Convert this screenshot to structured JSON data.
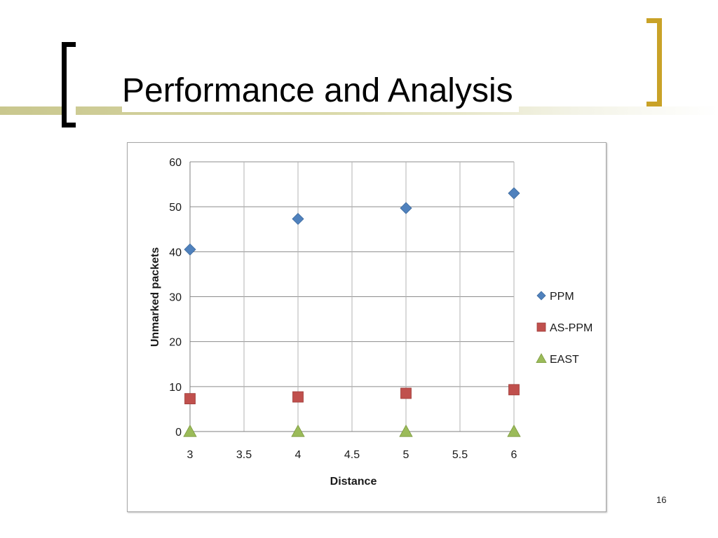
{
  "slide": {
    "title": "Performance and Analysis",
    "page_number": "16"
  },
  "chart_data": {
    "type": "scatter",
    "title": "",
    "xlabel": "Distance",
    "ylabel": "Unmarked packets",
    "xlim": [
      3,
      6
    ],
    "ylim": [
      0,
      60
    ],
    "x_ticks": [
      "3",
      "3.5",
      "4",
      "4.5",
      "5",
      "5.5",
      "6"
    ],
    "y_ticks": [
      "0",
      "10",
      "20",
      "30",
      "40",
      "50",
      "60"
    ],
    "grid": true,
    "legend_position": "right",
    "series": [
      {
        "name": "PPM",
        "marker": "diamond",
        "color": "#4f81bd",
        "x": [
          3,
          4,
          5,
          6
        ],
        "y": [
          40.5,
          47.3,
          49.7,
          53
        ]
      },
      {
        "name": "AS-PPM",
        "marker": "square",
        "color": "#c0504d",
        "x": [
          3,
          4,
          5,
          6
        ],
        "y": [
          7.3,
          7.7,
          8.5,
          9.3
        ]
      },
      {
        "name": "EAST",
        "marker": "triangle",
        "color": "#9bbb59",
        "x": [
          3,
          4,
          5,
          6
        ],
        "y": [
          0,
          0,
          0,
          0
        ]
      }
    ]
  }
}
